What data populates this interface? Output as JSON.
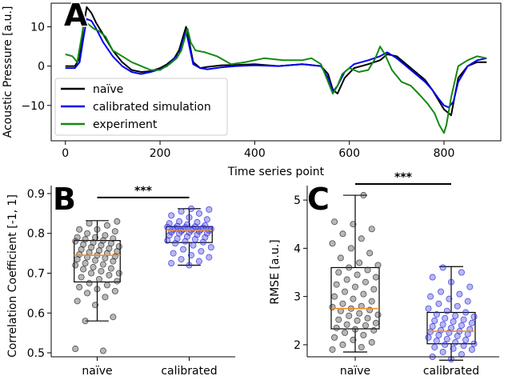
{
  "chart_data": [
    {
      "panel": "A",
      "type": "line",
      "xlabel": "Time series point",
      "ylabel": "Acoustic Pressure [a.u.]",
      "xlim": [
        -30,
        920
      ],
      "ylim": [
        -19,
        16
      ],
      "xticks": [
        0,
        200,
        400,
        600,
        800
      ],
      "yticks": [
        10,
        0,
        -10
      ],
      "legend": {
        "placement": "lower-left",
        "entries": [
          "naïve",
          "calibrated simulation",
          "experiment"
        ]
      },
      "series": [
        {
          "name": "naïve",
          "color": "#000000",
          "x": [
            0,
            20,
            30,
            38,
            45,
            55,
            65,
            80,
            100,
            120,
            140,
            160,
            180,
            200,
            215,
            230,
            240,
            250,
            255,
            262,
            270,
            285,
            300,
            330,
            360,
            400,
            450,
            500,
            540,
            555,
            565,
            575,
            590,
            610,
            640,
            665,
            680,
            700,
            720,
            740,
            760,
            775,
            790,
            800,
            810,
            815,
            830,
            850,
            870,
            890
          ],
          "y": [
            0,
            0,
            2,
            10,
            15,
            13.5,
            11,
            8,
            4,
            1,
            -1,
            -1.5,
            -1.3,
            -0.5,
            0.5,
            2,
            4,
            8,
            10,
            6,
            1,
            -0.5,
            -0.2,
            0.2,
            0.3,
            0.5,
            0,
            0.5,
            0,
            -2,
            -6,
            -7,
            -3,
            -0.5,
            0.5,
            1.5,
            3,
            2.5,
            0.5,
            -1.5,
            -3.5,
            -6,
            -9,
            -11,
            -12,
            -12.5,
            -3,
            0,
            1,
            1
          ]
        },
        {
          "name": "calibrated simulation",
          "color": "#0000ee",
          "x": [
            0,
            20,
            30,
            38,
            45,
            55,
            65,
            80,
            100,
            120,
            140,
            160,
            180,
            200,
            215,
            230,
            240,
            250,
            255,
            262,
            270,
            285,
            300,
            330,
            360,
            400,
            450,
            500,
            540,
            555,
            565,
            575,
            590,
            610,
            640,
            665,
            680,
            700,
            720,
            740,
            760,
            775,
            790,
            800,
            810,
            820,
            830,
            850,
            870,
            890
          ],
          "y": [
            -0.5,
            -0.5,
            1,
            7,
            12,
            11.5,
            9.5,
            6,
            2.5,
            0,
            -1.5,
            -2,
            -1.5,
            -0.8,
            0,
            2,
            3,
            7,
            9,
            5,
            0.5,
            -0.5,
            -0.8,
            -0.3,
            0,
            0.2,
            0,
            0.5,
            0,
            -3,
            -6.5,
            -5,
            -1.5,
            0.5,
            1.5,
            2.5,
            3.5,
            2,
            0,
            -2,
            -4,
            -6,
            -8.5,
            -10,
            -10.5,
            -9,
            -4,
            0,
            1.5,
            2
          ]
        },
        {
          "name": "experiment",
          "color": "#138a13",
          "x": [
            0,
            15,
            25,
            35,
            40,
            45,
            50,
            60,
            70,
            85,
            100,
            120,
            140,
            160,
            180,
            200,
            220,
            235,
            245,
            252,
            258,
            265,
            275,
            295,
            320,
            350,
            380,
            420,
            460,
            500,
            520,
            540,
            555,
            565,
            575,
            585,
            600,
            620,
            640,
            655,
            665,
            675,
            690,
            710,
            730,
            750,
            765,
            780,
            790,
            800,
            805,
            815,
            830,
            850,
            870,
            890
          ],
          "y": [
            3,
            2.5,
            1,
            8,
            12,
            11,
            10.5,
            9.5,
            9,
            7.5,
            4,
            2.5,
            1,
            0,
            -1,
            -1,
            0.5,
            2,
            4,
            7,
            9.5,
            6,
            4,
            3.5,
            2.5,
            0.5,
            1,
            2,
            1.5,
            1.5,
            2,
            0.5,
            -4,
            -7,
            -5,
            -2,
            -0.5,
            -1.5,
            -1,
            2,
            5,
            3,
            -1,
            -4,
            -5,
            -7.5,
            -9.5,
            -12,
            -15,
            -17,
            -15,
            -8,
            0,
            1.5,
            2.5,
            2
          ]
        }
      ]
    },
    {
      "panel": "B",
      "type": "box",
      "ylabel": "Correlation Coefficient [-1, 1]",
      "categories": [
        "naïve",
        "calibrated"
      ],
      "ylim": [
        0.49,
        0.92
      ],
      "yticks": [
        0.5,
        0.6,
        0.7,
        0.8,
        0.9
      ],
      "significance": "***",
      "boxes": [
        {
          "name": "naïve",
          "point_color": "#333333",
          "whisker_low": 0.58,
          "q1": 0.678,
          "median": 0.745,
          "q3": 0.782,
          "whisker_high": 0.832,
          "points": [
            0.51,
            0.505,
            0.58,
            0.59,
            0.62,
            0.63,
            0.64,
            0.65,
            0.655,
            0.66,
            0.665,
            0.67,
            0.675,
            0.68,
            0.685,
            0.69,
            0.695,
            0.7,
            0.7,
            0.705,
            0.71,
            0.712,
            0.715,
            0.72,
            0.722,
            0.725,
            0.73,
            0.732,
            0.735,
            0.738,
            0.74,
            0.742,
            0.745,
            0.747,
            0.75,
            0.752,
            0.755,
            0.757,
            0.76,
            0.762,
            0.765,
            0.767,
            0.77,
            0.772,
            0.775,
            0.777,
            0.78,
            0.782,
            0.785,
            0.787,
            0.79,
            0.79,
            0.795,
            0.8,
            0.805,
            0.81,
            0.81,
            0.82,
            0.825,
            0.83
          ]
        },
        {
          "name": "calibrated",
          "point_color": "#3333dd",
          "whisker_low": 0.72,
          "q1": 0.777,
          "median": 0.808,
          "q3": 0.817,
          "whisker_high": 0.862,
          "points": [
            0.72,
            0.725,
            0.73,
            0.735,
            0.74,
            0.745,
            0.75,
            0.755,
            0.76,
            0.765,
            0.77,
            0.775,
            0.778,
            0.78,
            0.782,
            0.785,
            0.787,
            0.79,
            0.792,
            0.795,
            0.797,
            0.8,
            0.8,
            0.802,
            0.803,
            0.805,
            0.806,
            0.807,
            0.808,
            0.809,
            0.81,
            0.81,
            0.811,
            0.812,
            0.813,
            0.814,
            0.815,
            0.816,
            0.817,
            0.818,
            0.82,
            0.822,
            0.825,
            0.828,
            0.83,
            0.835,
            0.84,
            0.845,
            0.85,
            0.855,
            0.86,
            0.862
          ]
        }
      ]
    },
    {
      "panel": "C",
      "type": "box",
      "ylabel": "RMSE [a.u.]",
      "categories": [
        "naïve",
        "calibrated"
      ],
      "ylim": [
        1.75,
        5.3
      ],
      "yticks": [
        2,
        3,
        4,
        5
      ],
      "significance": "***",
      "boxes": [
        {
          "name": "naïve",
          "point_color": "#333333",
          "whisker_low": 1.85,
          "q1": 2.33,
          "median": 2.75,
          "q3": 3.6,
          "whisker_high": 5.1,
          "points": [
            1.9,
            1.95,
            2.0,
            2.05,
            2.1,
            2.15,
            2.2,
            2.25,
            2.3,
            2.32,
            2.35,
            2.4,
            2.42,
            2.45,
            2.5,
            2.52,
            2.55,
            2.6,
            2.62,
            2.65,
            2.7,
            2.72,
            2.75,
            2.78,
            2.8,
            2.85,
            2.9,
            2.95,
            3.0,
            3.05,
            3.1,
            3.15,
            3.2,
            3.25,
            3.3,
            3.35,
            3.4,
            3.45,
            3.5,
            3.55,
            3.6,
            3.65,
            3.7,
            3.8,
            3.9,
            4.0,
            4.1,
            4.2,
            4.3,
            4.4,
            4.5,
            4.55,
            5.1
          ]
        },
        {
          "name": "calibrated",
          "point_color": "#3333dd",
          "whisker_low": 1.68,
          "q1": 2.02,
          "median": 2.28,
          "q3": 2.67,
          "whisker_high": 3.62,
          "points": [
            1.7,
            1.75,
            1.8,
            1.85,
            1.9,
            1.92,
            1.95,
            1.98,
            2.0,
            2.02,
            2.05,
            2.08,
            2.1,
            2.12,
            2.15,
            2.18,
            2.2,
            2.22,
            2.25,
            2.27,
            2.28,
            2.3,
            2.32,
            2.35,
            2.38,
            2.4,
            2.42,
            2.45,
            2.48,
            2.5,
            2.52,
            2.55,
            2.58,
            2.6,
            2.63,
            2.67,
            2.7,
            2.75,
            2.8,
            2.85,
            2.9,
            2.95,
            3.0,
            3.05,
            3.1,
            3.2,
            3.3,
            3.4,
            3.5,
            3.6
          ]
        }
      ]
    }
  ],
  "panels": {
    "a": "A",
    "b": "B",
    "c": "C"
  }
}
